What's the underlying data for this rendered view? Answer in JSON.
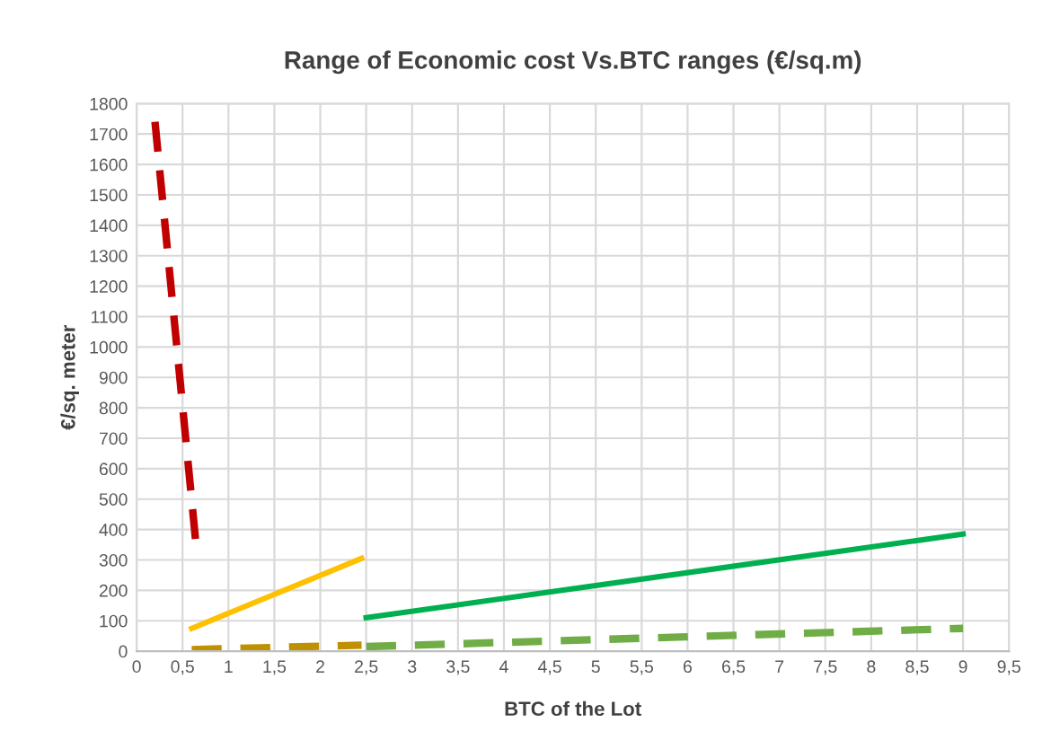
{
  "chart_data": {
    "type": "line",
    "title": "Range of Economic cost Vs.BTC ranges (€/sq.m)",
    "xlabel": "BTC of the Lot",
    "ylabel": "€/sq. meter",
    "series": [
      {
        "color": "#c00000",
        "x": [
          0.2,
          0.65
        ],
        "values": [
          1740,
          340
        ],
        "line_style": "dashed"
      },
      {
        "color": "#ffc000",
        "x": [
          0.6,
          2.45
        ],
        "values": [
          75,
          305
        ],
        "line_style": "solid"
      },
      {
        "color": "#bf9000",
        "x": [
          0.6,
          2.45
        ],
        "values": [
          5,
          20
        ],
        "line_style": "dashed"
      },
      {
        "color": "#00b050",
        "x": [
          2.5,
          9
        ],
        "values": [
          110,
          385
        ],
        "line_style": "solid"
      },
      {
        "color": "#70ad47",
        "x": [
          2.5,
          9
        ],
        "values": [
          15,
          75
        ],
        "line_style": "dashed"
      }
    ],
    "xlim": [
      0,
      9.5
    ],
    "xticks": [
      0,
      {
        "value": 0.5,
        "label": "0,5"
      },
      1,
      {
        "value": 1.5,
        "label": "1,5"
      },
      2,
      {
        "value": 2.5,
        "label": "2,5"
      },
      3,
      {
        "value": 3.5,
        "label": "3,5"
      },
      4,
      {
        "value": 4.5,
        "label": "4,5"
      },
      5,
      {
        "value": 5.5,
        "label": "5,5"
      },
      6,
      {
        "value": 6.5,
        "label": "6,5"
      },
      7,
      {
        "value": 7.5,
        "label": "7,5"
      },
      8,
      {
        "value": 8.5,
        "label": "8,5"
      },
      9,
      {
        "value": 9.5,
        "label": "9,5"
      }
    ],
    "ylim": [
      0,
      1800
    ],
    "yticks": [
      0,
      100,
      200,
      300,
      400,
      500,
      600,
      700,
      800,
      900,
      1000,
      1100,
      1200,
      1300,
      1400,
      1500,
      1600,
      1700,
      1800
    ],
    "grid": true
  }
}
